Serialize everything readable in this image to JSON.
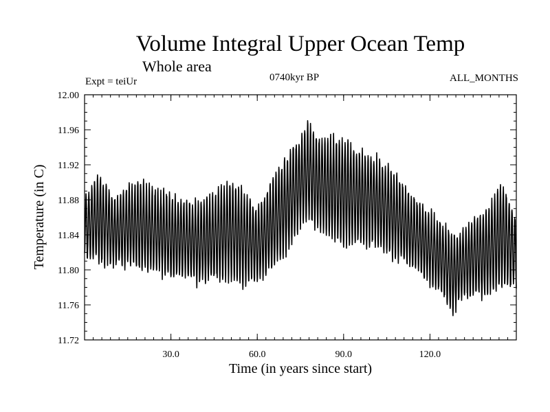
{
  "chart_data": {
    "type": "line",
    "title": "Volume Integral Upper Ocean Temp",
    "subtitle": "Whole area",
    "experiment_label": "Expt = teiUr",
    "period_label": "0740kyr BP",
    "months_label": "ALL_MONTHS",
    "xlabel": "Time (in years since start)",
    "ylabel": "Temperature (in C)",
    "xlim": [
      0,
      150
    ],
    "ylim": [
      11.72,
      12.0
    ],
    "x_ticks": [
      30,
      60,
      90,
      120
    ],
    "x_tick_labels": [
      "30.0",
      "60.0",
      "90.0",
      "120.0"
    ],
    "y_ticks": [
      11.72,
      11.76,
      11.8,
      11.84,
      11.88,
      11.92,
      11.96,
      12.0
    ],
    "y_tick_labels": [
      "11.72",
      "11.76",
      "11.80",
      "11.84",
      "11.88",
      "11.92",
      "11.96",
      "12.00"
    ],
    "grid": false,
    "series": [
      {
        "name": "Volume Integral Upper Ocean Temp",
        "color": "#000000",
        "cycles_per_year": 1,
        "note": "monthly values oscillating between approximate annual minimum and maximum",
        "x": [
          0,
          5,
          10,
          15,
          20,
          25,
          30,
          35,
          40,
          45,
          50,
          55,
          60,
          65,
          70,
          75,
          78,
          80,
          85,
          90,
          95,
          100,
          105,
          110,
          115,
          120,
          125,
          128,
          130,
          135,
          140,
          145,
          150
        ],
        "annual_max": [
          11.88,
          11.91,
          11.88,
          11.895,
          11.9,
          11.89,
          11.885,
          11.875,
          11.88,
          11.885,
          11.9,
          11.89,
          11.87,
          11.9,
          11.93,
          11.95,
          11.97,
          11.95,
          11.95,
          11.95,
          11.935,
          11.93,
          11.92,
          11.9,
          11.88,
          11.865,
          11.85,
          11.84,
          11.84,
          11.86,
          11.87,
          11.9,
          11.86
        ],
        "annual_min": [
          11.815,
          11.81,
          11.805,
          11.805,
          11.8,
          11.8,
          11.79,
          11.795,
          11.785,
          11.79,
          11.79,
          11.785,
          11.79,
          11.8,
          11.82,
          11.85,
          11.86,
          11.85,
          11.84,
          11.83,
          11.83,
          11.83,
          11.82,
          11.81,
          11.8,
          11.785,
          11.77,
          11.75,
          11.765,
          11.77,
          11.77,
          11.78,
          11.78
        ]
      }
    ]
  }
}
